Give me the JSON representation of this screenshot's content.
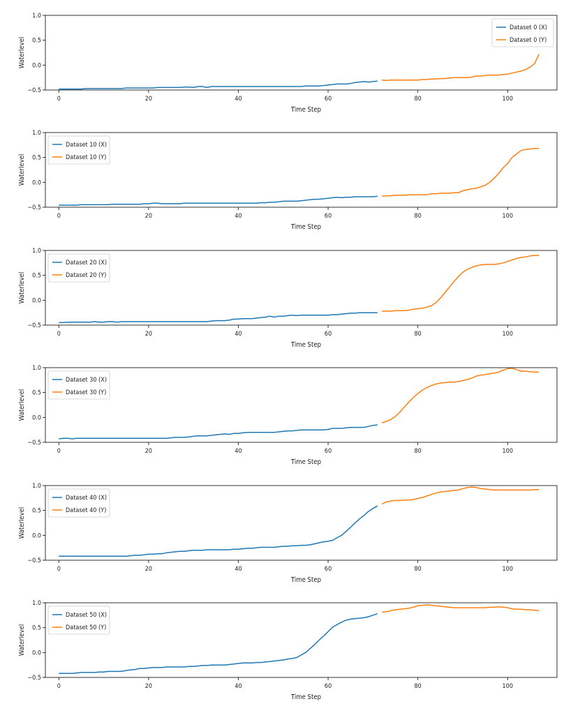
{
  "chart_data": [
    {
      "type": "line",
      "xlabel": "Time Step",
      "ylabel": "Waterlevel",
      "xlim": [
        -3,
        111
      ],
      "ylim": [
        -0.5,
        1.0
      ],
      "xticks": [
        0,
        20,
        40,
        60,
        80,
        100
      ],
      "yticks": [
        -0.5,
        0.0,
        0.5,
        1.0
      ],
      "ytick_labels": [
        "−0.5",
        "0.0",
        "0.5",
        "1.0"
      ],
      "grid": false,
      "legend_position": "top-right",
      "series": [
        {
          "name": "Dataset 0 (X)",
          "color": "#1f77b4",
          "x_start": 0,
          "values": [
            -0.48,
            -0.48,
            -0.48,
            -0.48,
            -0.48,
            -0.48,
            -0.47,
            -0.47,
            -0.47,
            -0.47,
            -0.47,
            -0.47,
            -0.47,
            -0.47,
            -0.47,
            -0.46,
            -0.46,
            -0.46,
            -0.46,
            -0.46,
            -0.46,
            -0.46,
            -0.45,
            -0.45,
            -0.45,
            -0.45,
            -0.45,
            -0.45,
            -0.44,
            -0.44,
            -0.45,
            -0.43,
            -0.43,
            -0.45,
            -0.43,
            -0.43,
            -0.43,
            -0.43,
            -0.43,
            -0.43,
            -0.43,
            -0.43,
            -0.43,
            -0.43,
            -0.43,
            -0.43,
            -0.43,
            -0.43,
            -0.43,
            -0.43,
            -0.43,
            -0.43,
            -0.43,
            -0.43,
            -0.43,
            -0.42,
            -0.42,
            -0.42,
            -0.42,
            -0.41,
            -0.4,
            -0.39,
            -0.38,
            -0.38,
            -0.38,
            -0.37,
            -0.35,
            -0.34,
            -0.33,
            -0.34,
            -0.33,
            -0.32
          ]
        },
        {
          "name": "Dataset 0 (Y)",
          "color": "#ff7f0e",
          "x_start": 72,
          "values": [
            -0.3,
            -0.31,
            -0.3,
            -0.3,
            -0.3,
            -0.3,
            -0.3,
            -0.3,
            -0.3,
            -0.29,
            -0.29,
            -0.28,
            -0.28,
            -0.27,
            -0.27,
            -0.26,
            -0.25,
            -0.25,
            -0.25,
            -0.25,
            -0.24,
            -0.22,
            -0.22,
            -0.21,
            -0.2,
            -0.2,
            -0.2,
            -0.19,
            -0.18,
            -0.16,
            -0.14,
            -0.12,
            -0.09,
            -0.04,
            0.03,
            0.22
          ]
        }
      ]
    },
    {
      "type": "line",
      "xlabel": "Time Step",
      "ylabel": "Waterlevel",
      "xlim": [
        -3,
        111
      ],
      "ylim": [
        -0.5,
        1.0
      ],
      "xticks": [
        0,
        20,
        40,
        60,
        80,
        100
      ],
      "yticks": [
        -0.5,
        0.0,
        0.5,
        1.0
      ],
      "ytick_labels": [
        "−0.5",
        "0.0",
        "0.5",
        "1.0"
      ],
      "grid": false,
      "legend_position": "top-left",
      "series": [
        {
          "name": "Dataset 10 (X)",
          "color": "#1f77b4",
          "x_start": 0,
          "values": [
            -0.46,
            -0.46,
            -0.46,
            -0.46,
            -0.46,
            -0.45,
            -0.45,
            -0.45,
            -0.45,
            -0.45,
            -0.45,
            -0.45,
            -0.44,
            -0.44,
            -0.44,
            -0.44,
            -0.44,
            -0.44,
            -0.44,
            -0.43,
            -0.43,
            -0.42,
            -0.42,
            -0.43,
            -0.43,
            -0.43,
            -0.43,
            -0.43,
            -0.42,
            -0.42,
            -0.42,
            -0.42,
            -0.42,
            -0.42,
            -0.42,
            -0.42,
            -0.42,
            -0.42,
            -0.42,
            -0.42,
            -0.42,
            -0.42,
            -0.42,
            -0.42,
            -0.42,
            -0.41,
            -0.41,
            -0.4,
            -0.4,
            -0.39,
            -0.38,
            -0.38,
            -0.38,
            -0.38,
            -0.37,
            -0.36,
            -0.35,
            -0.34,
            -0.34,
            -0.33,
            -0.32,
            -0.31,
            -0.3,
            -0.31,
            -0.3,
            -0.3,
            -0.29,
            -0.29,
            -0.29,
            -0.29,
            -0.29,
            -0.28
          ]
        },
        {
          "name": "Dataset 10 (Y)",
          "color": "#ff7f0e",
          "x_start": 72,
          "values": [
            -0.28,
            -0.27,
            -0.27,
            -0.26,
            -0.26,
            -0.26,
            -0.25,
            -0.25,
            -0.25,
            -0.25,
            -0.25,
            -0.23,
            -0.23,
            -0.22,
            -0.22,
            -0.22,
            -0.21,
            -0.21,
            -0.17,
            -0.15,
            -0.13,
            -0.12,
            -0.09,
            -0.06,
            0.0,
            0.08,
            0.18,
            0.29,
            0.38,
            0.5,
            0.57,
            0.64,
            0.66,
            0.67,
            0.68,
            0.68
          ]
        }
      ]
    },
    {
      "type": "line",
      "xlabel": "Time Step",
      "ylabel": "Waterlevel",
      "xlim": [
        -3,
        111
      ],
      "ylim": [
        -0.5,
        1.0
      ],
      "xticks": [
        0,
        20,
        40,
        60,
        80,
        100
      ],
      "yticks": [
        -0.5,
        0.0,
        0.5,
        1.0
      ],
      "ytick_labels": [
        "−0.5",
        "0.0",
        "0.5",
        "1.0"
      ],
      "grid": false,
      "legend_position": "top-left",
      "series": [
        {
          "name": "Dataset 20 (X)",
          "color": "#1f77b4",
          "x_start": 0,
          "values": [
            -0.45,
            -0.45,
            -0.44,
            -0.44,
            -0.44,
            -0.44,
            -0.44,
            -0.44,
            -0.43,
            -0.44,
            -0.44,
            -0.43,
            -0.43,
            -0.44,
            -0.43,
            -0.43,
            -0.43,
            -0.43,
            -0.43,
            -0.43,
            -0.43,
            -0.43,
            -0.43,
            -0.43,
            -0.43,
            -0.43,
            -0.43,
            -0.43,
            -0.43,
            -0.43,
            -0.43,
            -0.43,
            -0.43,
            -0.43,
            -0.42,
            -0.41,
            -0.41,
            -0.41,
            -0.4,
            -0.38,
            -0.38,
            -0.37,
            -0.37,
            -0.37,
            -0.36,
            -0.35,
            -0.34,
            -0.32,
            -0.34,
            -0.32,
            -0.32,
            -0.31,
            -0.3,
            -0.31,
            -0.3,
            -0.3,
            -0.3,
            -0.3,
            -0.3,
            -0.3,
            -0.3,
            -0.29,
            -0.29,
            -0.28,
            -0.27,
            -0.26,
            -0.26,
            -0.25,
            -0.25,
            -0.25,
            -0.25,
            -0.25
          ]
        },
        {
          "name": "Dataset 20 (Y)",
          "color": "#ff7f0e",
          "x_start": 72,
          "values": [
            -0.22,
            -0.22,
            -0.22,
            -0.21,
            -0.21,
            -0.21,
            -0.2,
            -0.18,
            -0.17,
            -0.16,
            -0.14,
            -0.11,
            -0.05,
            0.04,
            0.15,
            0.26,
            0.37,
            0.47,
            0.56,
            0.62,
            0.66,
            0.69,
            0.71,
            0.72,
            0.72,
            0.72,
            0.73,
            0.75,
            0.78,
            0.81,
            0.84,
            0.86,
            0.87,
            0.89,
            0.9,
            0.9
          ]
        }
      ]
    },
    {
      "type": "line",
      "xlabel": "Time Step",
      "ylabel": "Waterlevel",
      "xlim": [
        -3,
        111
      ],
      "ylim": [
        -0.5,
        1.0
      ],
      "xticks": [
        0,
        20,
        40,
        60,
        80,
        100
      ],
      "yticks": [
        -0.5,
        0.0,
        0.5,
        1.0
      ],
      "ytick_labels": [
        "−0.5",
        "0.0",
        "0.5",
        "1.0"
      ],
      "grid": false,
      "legend_position": "top-left",
      "series": [
        {
          "name": "Dataset 30 (X)",
          "color": "#1f77b4",
          "x_start": 0,
          "values": [
            -0.43,
            -0.42,
            -0.42,
            -0.43,
            -0.42,
            -0.42,
            -0.42,
            -0.42,
            -0.42,
            -0.42,
            -0.42,
            -0.42,
            -0.42,
            -0.42,
            -0.42,
            -0.42,
            -0.42,
            -0.42,
            -0.42,
            -0.42,
            -0.42,
            -0.42,
            -0.42,
            -0.42,
            -0.42,
            -0.41,
            -0.4,
            -0.4,
            -0.4,
            -0.39,
            -0.38,
            -0.37,
            -0.37,
            -0.37,
            -0.36,
            -0.35,
            -0.34,
            -0.33,
            -0.34,
            -0.32,
            -0.32,
            -0.31,
            -0.3,
            -0.3,
            -0.3,
            -0.3,
            -0.3,
            -0.3,
            -0.3,
            -0.29,
            -0.28,
            -0.27,
            -0.27,
            -0.26,
            -0.25,
            -0.25,
            -0.25,
            -0.25,
            -0.25,
            -0.25,
            -0.24,
            -0.22,
            -0.22,
            -0.22,
            -0.21,
            -0.2,
            -0.2,
            -0.2,
            -0.2,
            -0.18,
            -0.16,
            -0.15
          ]
        },
        {
          "name": "Dataset 30 (Y)",
          "color": "#ff7f0e",
          "x_start": 72,
          "values": [
            -0.11,
            -0.08,
            -0.04,
            0.02,
            0.11,
            0.21,
            0.31,
            0.4,
            0.48,
            0.55,
            0.6,
            0.64,
            0.67,
            0.69,
            0.7,
            0.71,
            0.71,
            0.72,
            0.74,
            0.76,
            0.79,
            0.83,
            0.85,
            0.86,
            0.88,
            0.89,
            0.91,
            0.95,
            0.98,
            0.99,
            0.96,
            0.93,
            0.93,
            0.92,
            0.91,
            0.91
          ]
        }
      ]
    },
    {
      "type": "line",
      "xlabel": "Time Step",
      "ylabel": "Waterlevel",
      "xlim": [
        -3,
        111
      ],
      "ylim": [
        -0.5,
        1.0
      ],
      "xticks": [
        0,
        20,
        40,
        60,
        80,
        100
      ],
      "yticks": [
        -0.5,
        0.0,
        0.5,
        1.0
      ],
      "ytick_labels": [
        "−0.5",
        "0.0",
        "0.5",
        "1.0"
      ],
      "grid": false,
      "legend_position": "top-left",
      "series": [
        {
          "name": "Dataset 40 (X)",
          "color": "#1f77b4",
          "x_start": 0,
          "values": [
            -0.42,
            -0.42,
            -0.42,
            -0.42,
            -0.42,
            -0.42,
            -0.42,
            -0.42,
            -0.42,
            -0.42,
            -0.42,
            -0.42,
            -0.42,
            -0.42,
            -0.42,
            -0.42,
            -0.41,
            -0.4,
            -0.4,
            -0.39,
            -0.38,
            -0.38,
            -0.37,
            -0.37,
            -0.35,
            -0.34,
            -0.33,
            -0.32,
            -0.32,
            -0.31,
            -0.3,
            -0.3,
            -0.3,
            -0.29,
            -0.29,
            -0.29,
            -0.29,
            -0.29,
            -0.29,
            -0.28,
            -0.28,
            -0.27,
            -0.26,
            -0.26,
            -0.25,
            -0.24,
            -0.24,
            -0.24,
            -0.24,
            -0.23,
            -0.22,
            -0.22,
            -0.21,
            -0.21,
            -0.2,
            -0.2,
            -0.19,
            -0.17,
            -0.15,
            -0.13,
            -0.12,
            -0.1,
            -0.05,
            0.0,
            0.08,
            0.16,
            0.25,
            0.33,
            0.4,
            0.48,
            0.54,
            0.59
          ]
        },
        {
          "name": "Dataset 40 (Y)",
          "color": "#ff7f0e",
          "x_start": 72,
          "values": [
            0.63,
            0.67,
            0.69,
            0.7,
            0.7,
            0.71,
            0.71,
            0.72,
            0.74,
            0.76,
            0.79,
            0.82,
            0.85,
            0.87,
            0.88,
            0.89,
            0.9,
            0.91,
            0.94,
            0.96,
            0.97,
            0.96,
            0.94,
            0.93,
            0.92,
            0.91,
            0.91,
            0.91,
            0.91,
            0.91,
            0.91,
            0.91,
            0.91,
            0.91,
            0.92,
            0.92
          ]
        }
      ]
    },
    {
      "type": "line",
      "xlabel": "Time Step",
      "ylabel": "Waterlevel",
      "xlim": [
        -3,
        111
      ],
      "ylim": [
        -0.5,
        1.0
      ],
      "xticks": [
        0,
        20,
        40,
        60,
        80,
        100
      ],
      "yticks": [
        -0.5,
        0.0,
        0.5,
        1.0
      ],
      "ytick_labels": [
        "−0.5",
        "0.0",
        "0.5",
        "1.0"
      ],
      "grid": false,
      "legend_position": "top-left",
      "series": [
        {
          "name": "Dataset 50 (X)",
          "color": "#1f77b4",
          "x_start": 0,
          "values": [
            -0.42,
            -0.42,
            -0.42,
            -0.42,
            -0.41,
            -0.4,
            -0.4,
            -0.4,
            -0.4,
            -0.39,
            -0.39,
            -0.38,
            -0.38,
            -0.38,
            -0.38,
            -0.36,
            -0.35,
            -0.34,
            -0.32,
            -0.32,
            -0.31,
            -0.3,
            -0.3,
            -0.3,
            -0.29,
            -0.29,
            -0.29,
            -0.29,
            -0.29,
            -0.28,
            -0.28,
            -0.27,
            -0.26,
            -0.26,
            -0.25,
            -0.25,
            -0.25,
            -0.25,
            -0.24,
            -0.23,
            -0.22,
            -0.21,
            -0.21,
            -0.21,
            -0.2,
            -0.2,
            -0.19,
            -0.18,
            -0.17,
            -0.16,
            -0.15,
            -0.13,
            -0.12,
            -0.1,
            -0.05,
            0.0,
            0.08,
            0.16,
            0.25,
            0.33,
            0.42,
            0.51,
            0.56,
            0.61,
            0.65,
            0.67,
            0.68,
            0.69,
            0.7,
            0.72,
            0.75,
            0.78
          ]
        },
        {
          "name": "Dataset 50 (Y)",
          "color": "#ff7f0e",
          "x_start": 72,
          "values": [
            0.81,
            0.82,
            0.84,
            0.86,
            0.87,
            0.88,
            0.89,
            0.91,
            0.94,
            0.95,
            0.96,
            0.95,
            0.94,
            0.93,
            0.92,
            0.91,
            0.9,
            0.9,
            0.9,
            0.9,
            0.9,
            0.9,
            0.9,
            0.9,
            0.91,
            0.91,
            0.92,
            0.91,
            0.9,
            0.88,
            0.87,
            0.87,
            0.86,
            0.86,
            0.85,
            0.84
          ]
        }
      ]
    }
  ]
}
